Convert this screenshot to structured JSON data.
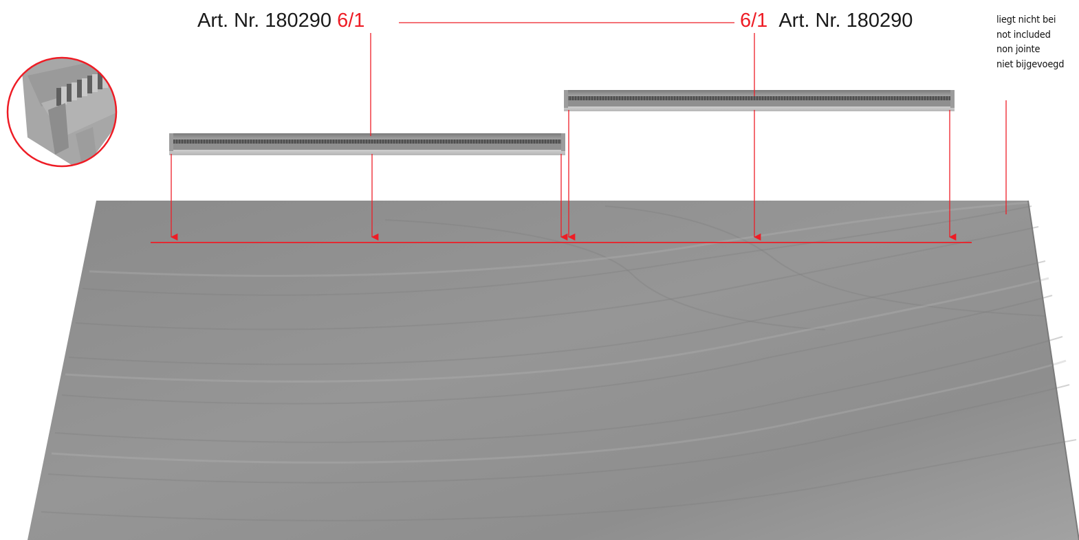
{
  "labels": {
    "left": {
      "art_nr": "Art. Nr. 180290",
      "part": "6/1"
    },
    "right": {
      "art_nr": "Art. Nr. 180290",
      "part": "6/1"
    }
  },
  "note": {
    "lines": [
      "liegt nicht bei",
      "not included",
      "non jointe",
      "niet bijgevoegd"
    ]
  },
  "colors": {
    "accent": "#ee1c25",
    "text": "#1a1a1a",
    "wood": "#8c8c8c",
    "rail": "#9a9a9a"
  }
}
